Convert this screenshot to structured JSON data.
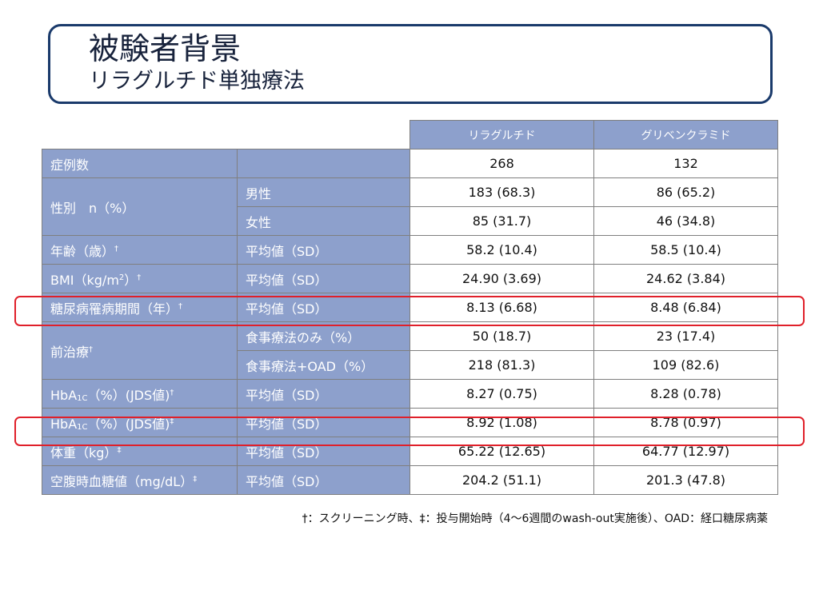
{
  "header": {
    "title": "被験者背景",
    "subtitle": "リラグルチド単独療法"
  },
  "table": {
    "columns": [
      "リラグルチド",
      "グリベンクラミド"
    ],
    "rows": {
      "cases": {
        "label": "症例数",
        "sub": "",
        "v1": "268",
        "v2": "132"
      },
      "sex_label": "性別　n（%）",
      "sex_male": {
        "sub": "男性",
        "v1": "183 (68.3)",
        "v2": "86 (65.2)"
      },
      "sex_female": {
        "sub": "女性",
        "v1": "85 (31.7)",
        "v2": "46 (34.8)"
      },
      "age": {
        "label": "年齢（歳）",
        "mark": "†",
        "sub": "平均値（SD）",
        "v1": "58.2 (10.4)",
        "v2": "58.5 (10.4)"
      },
      "bmi": {
        "label_pre": "BMI（kg/m",
        "sq": "2",
        "label_post": "）",
        "mark": "†",
        "sub": "平均値（SD）",
        "v1": "24.90 (3.69)",
        "v2": "24.62 (3.84)"
      },
      "duration": {
        "label": "糖尿病罹病期間（年）",
        "mark": "†",
        "sub": "平均値（SD）",
        "v1": "8.13 (6.68)",
        "v2": "8.48 (6.84)"
      },
      "prior_label": "前治療",
      "prior_mark": "†",
      "prior_diet": {
        "sub": "食事療法のみ（%）",
        "v1": "50 (18.7)",
        "v2": "23 (17.4)"
      },
      "prior_oad": {
        "sub": "食事療法+OAD（%）",
        "v1": "218 (81.3)",
        "v2": "109 (82.6)"
      },
      "hba1c_screen": {
        "pre": "HbA",
        "sub_script": "1C",
        "post": "（%）(JDS値)",
        "mark": "†",
        "sub": "平均値（SD）",
        "v1": "8.27 (0.75)",
        "v2": "8.28 (0.78)"
      },
      "hba1c_start": {
        "pre": "HbA",
        "sub_script": "1C",
        "post": "（%）(JDS値)",
        "mark": "‡",
        "sub": "平均値（SD）",
        "v1": "8.92 (1.08)",
        "v2": "8.78 (0.97)"
      },
      "weight": {
        "label": "体重（kg）",
        "mark": "‡",
        "sub": "平均値（SD）",
        "v1": "65.22 (12.65)",
        "v2": "64.77 (12.97)"
      },
      "fpg": {
        "label": "空腹時血糖値（mg/dL）",
        "mark": "‡",
        "sub": "平均値（SD）",
        "v1": "204.2 (51.1)",
        "v2": "201.3 (47.8)"
      }
    }
  },
  "footnote": "†：スクリーニング時、‡：投与開始時（4〜6週間のwash-out実施後）、OAD：経口糖尿病薬",
  "colors": {
    "header_cell": "#8da0cc",
    "title_border": "#1a3a6b",
    "highlight": "#e0202a"
  }
}
